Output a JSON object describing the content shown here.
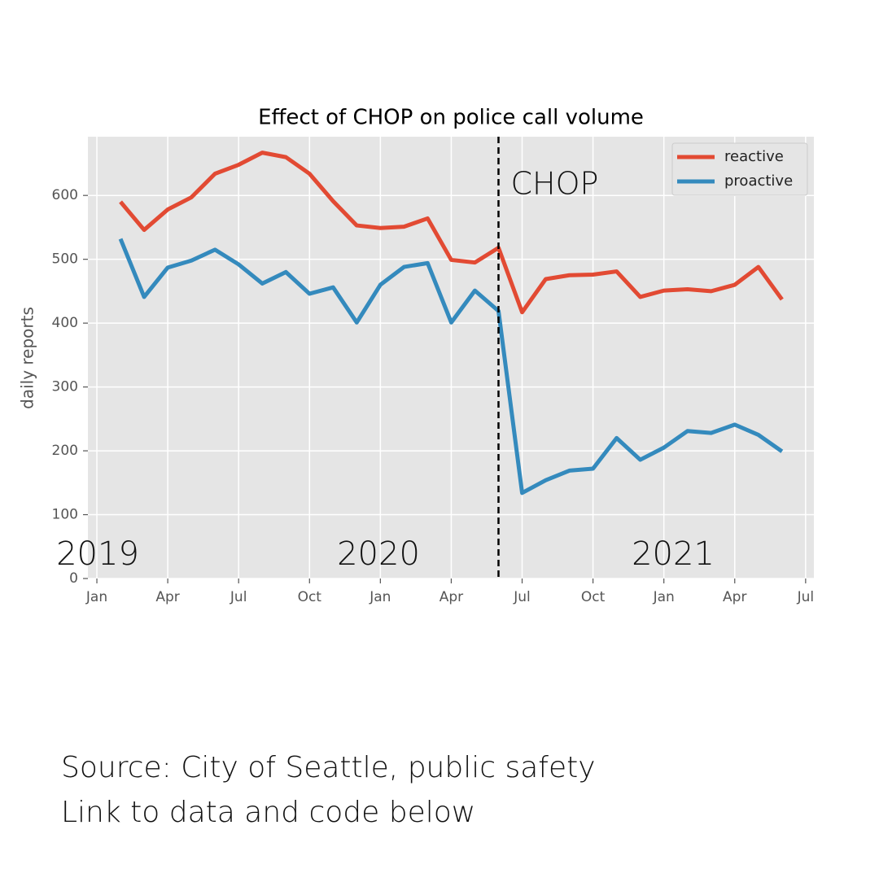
{
  "chart_data": {
    "type": "line",
    "title": "Effect of CHOP on police call volume",
    "ylabel": "daily reports",
    "x": [
      1,
      2,
      3,
      4,
      5,
      6,
      7,
      8,
      9,
      10,
      11,
      12,
      13,
      14,
      15,
      16,
      17,
      18,
      19,
      20,
      21,
      22,
      23,
      24,
      25,
      26,
      27,
      28,
      29
    ],
    "series": [
      {
        "name": "reactive",
        "color": "#e24a33",
        "values": [
          590,
          546,
          578,
          597,
          634,
          648,
          667,
          660,
          634,
          591,
          553,
          549,
          551,
          564,
          499,
          495,
          518,
          417,
          469,
          475,
          476,
          481,
          441,
          451,
          453,
          450,
          460,
          488,
          437
        ]
      },
      {
        "name": "proactive",
        "color": "#348abd",
        "values": [
          532,
          441,
          487,
          498,
          515,
          492,
          462,
          480,
          446,
          456,
          401,
          460,
          488,
          494,
          401,
          451,
          419,
          134,
          154,
          169,
          172,
          220,
          186,
          205,
          231,
          228,
          241,
          225,
          199
        ]
      }
    ],
    "xlim": [
      -0.38,
      30.35
    ],
    "xticks": [
      {
        "value": 0,
        "label": "Jan"
      },
      {
        "value": 3,
        "label": "Apr"
      },
      {
        "value": 6,
        "label": "Jul"
      },
      {
        "value": 9,
        "label": "Oct"
      },
      {
        "value": 12,
        "label": "Jan"
      },
      {
        "value": 15,
        "label": "Apr"
      },
      {
        "value": 18,
        "label": "Jul"
      },
      {
        "value": 21,
        "label": "Oct"
      },
      {
        "value": 24,
        "label": "Jan"
      },
      {
        "value": 27,
        "label": "Apr"
      },
      {
        "value": 30,
        "label": "Jul"
      }
    ],
    "ylim": [
      0,
      692
    ],
    "yticks": [
      0,
      100,
      200,
      300,
      400,
      500,
      600
    ],
    "grid": true,
    "legend": "upper right",
    "events": [
      {
        "label": "CHOP",
        "x": 17
      }
    ],
    "year_labels": [
      "2019",
      "2020",
      "2021"
    ]
  },
  "footer": [
    "Source: City of Seattle, public safety",
    "Link to data and code below"
  ]
}
